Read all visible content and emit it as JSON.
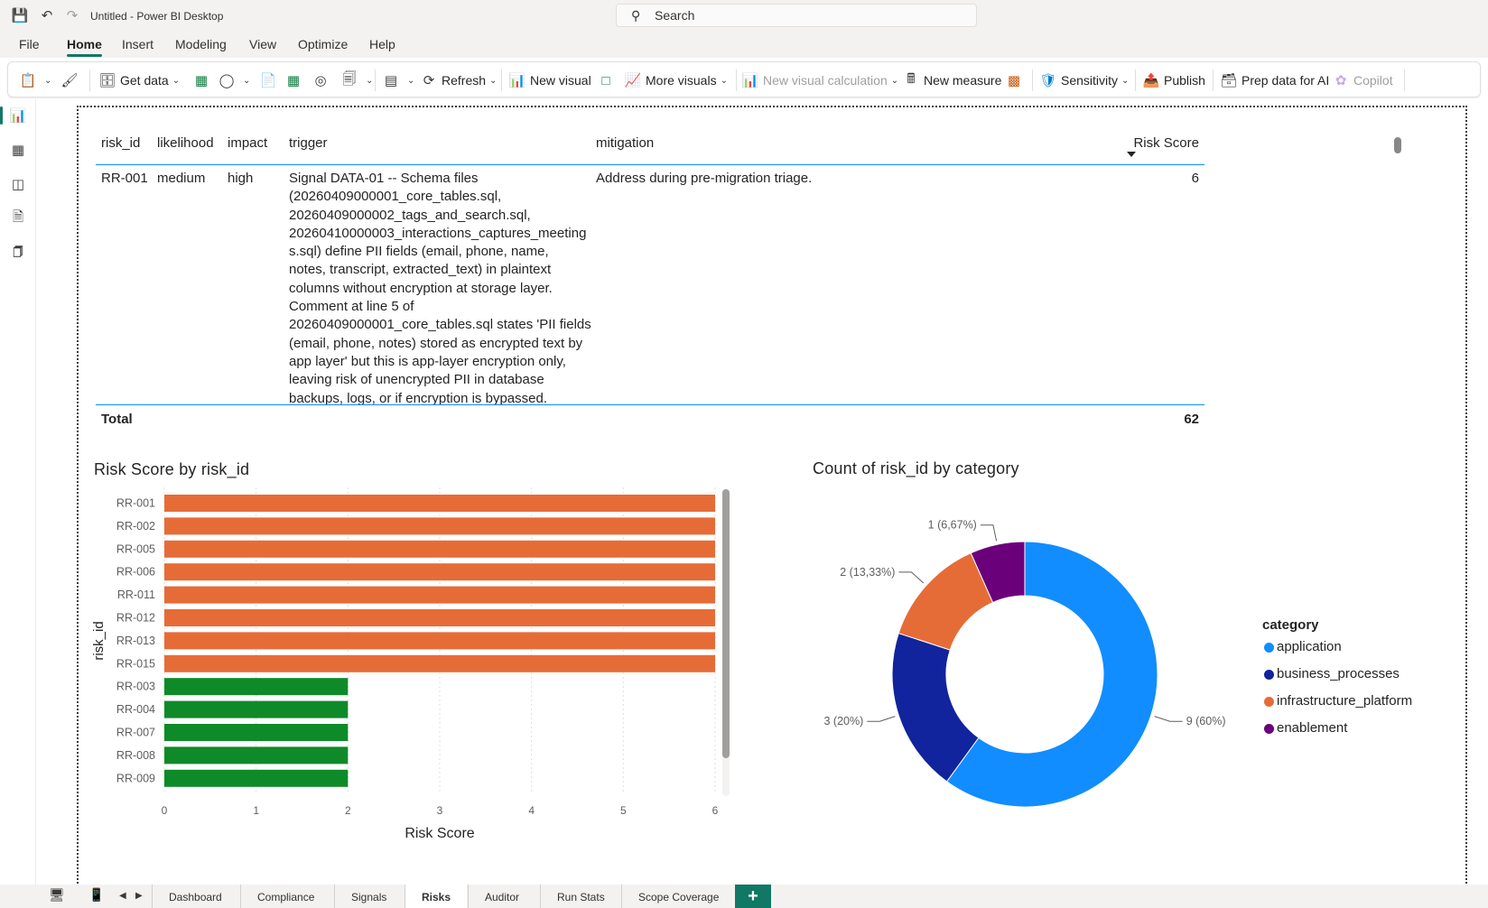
{
  "window": {
    "title": "Untitled - Power BI Desktop",
    "search_placeholder": "Search"
  },
  "menu": {
    "items": [
      "File",
      "Home",
      "Insert",
      "Modeling",
      "View",
      "Optimize",
      "Help"
    ],
    "active": "Home"
  },
  "ribbon": {
    "get_data": "Get data",
    "refresh": "Refresh",
    "new_visual": "New visual",
    "more_visuals": "More visuals",
    "new_visual_calculation": "New visual calculation",
    "new_measure": "New measure",
    "sensitivity": "Sensitivity",
    "publish": "Publish",
    "prep_data_for_ai": "Prep data for AI",
    "copilot": "Copilot"
  },
  "table": {
    "headers": [
      "risk_id",
      "likelihood",
      "impact",
      "trigger",
      "mitigation",
      "Risk Score"
    ],
    "rows": [
      {
        "risk_id": "RR-001",
        "likelihood": "medium",
        "impact": "high",
        "trigger_lines": [
          "Signal DATA-01 -- Schema files",
          "(20260409000001_core_tables.sql,",
          "20260409000002_tags_and_search.sql,",
          "20260410000003_interactions_captures_meeting",
          "s.sql) define PII fields (email, phone, name,",
          "notes, transcript, extracted_text) in plaintext",
          "columns without encryption at storage layer.",
          "Comment at line 5 of",
          "20260409000001_core_tables.sql states 'PII fields",
          "(email, phone, notes) stored as encrypted text by",
          "app layer' but this is app-layer encryption only,",
          "leaving risk of unencrypted PII in database",
          "backups, logs, or if encryption is bypassed."
        ],
        "mitigation": "Address during pre-migration triage.",
        "risk_score": "6"
      }
    ],
    "total_label": "Total",
    "total_value": "62"
  },
  "chart_data": [
    {
      "type": "bar",
      "orientation": "horizontal",
      "title": "Risk Score by risk_id",
      "xlabel": "Risk Score",
      "ylabel": "risk_id",
      "categories": [
        "RR-001",
        "RR-002",
        "RR-005",
        "RR-006",
        "RR-011",
        "RR-012",
        "RR-013",
        "RR-015",
        "RR-003",
        "RR-004",
        "RR-007",
        "RR-008",
        "RR-009"
      ],
      "values": [
        6,
        6,
        6,
        6,
        6,
        6,
        6,
        6,
        2,
        2,
        2,
        2,
        2
      ],
      "bar_colors": [
        "#e66c37",
        "#e66c37",
        "#e66c37",
        "#e66c37",
        "#e66c37",
        "#e66c37",
        "#e66c37",
        "#e66c37",
        "#0f8a28",
        "#0f8a28",
        "#0f8a28",
        "#0f8a28",
        "#0f8a28"
      ],
      "xlim": [
        0,
        6
      ],
      "xticks": [
        "0",
        "1",
        "2",
        "3",
        "4",
        "5",
        "6"
      ],
      "grid": true
    },
    {
      "type": "pie",
      "variant": "donut",
      "title": "Count of risk_id by category",
      "legend_title": "category",
      "legend_position": "right",
      "slices": [
        {
          "name": "application",
          "value": 9,
          "label": "9 (60%)",
          "color": "#118dff"
        },
        {
          "name": "business_processes",
          "value": 3,
          "label": "3 (20%)",
          "color": "#12239e"
        },
        {
          "name": "infrastructure_platform",
          "value": 2,
          "label": "2 (13,33%)",
          "color": "#e66c37"
        },
        {
          "name": "enablement",
          "value": 1,
          "label": "1 (6,67%)",
          "color": "#6b007b"
        }
      ]
    }
  ],
  "bottom_tabs": {
    "tabs": [
      "Dashboard",
      "Compliance",
      "Signals",
      "Risks",
      "Auditor",
      "Run Stats",
      "Scope Coverage"
    ],
    "active": "Risks",
    "add_label": "+"
  }
}
